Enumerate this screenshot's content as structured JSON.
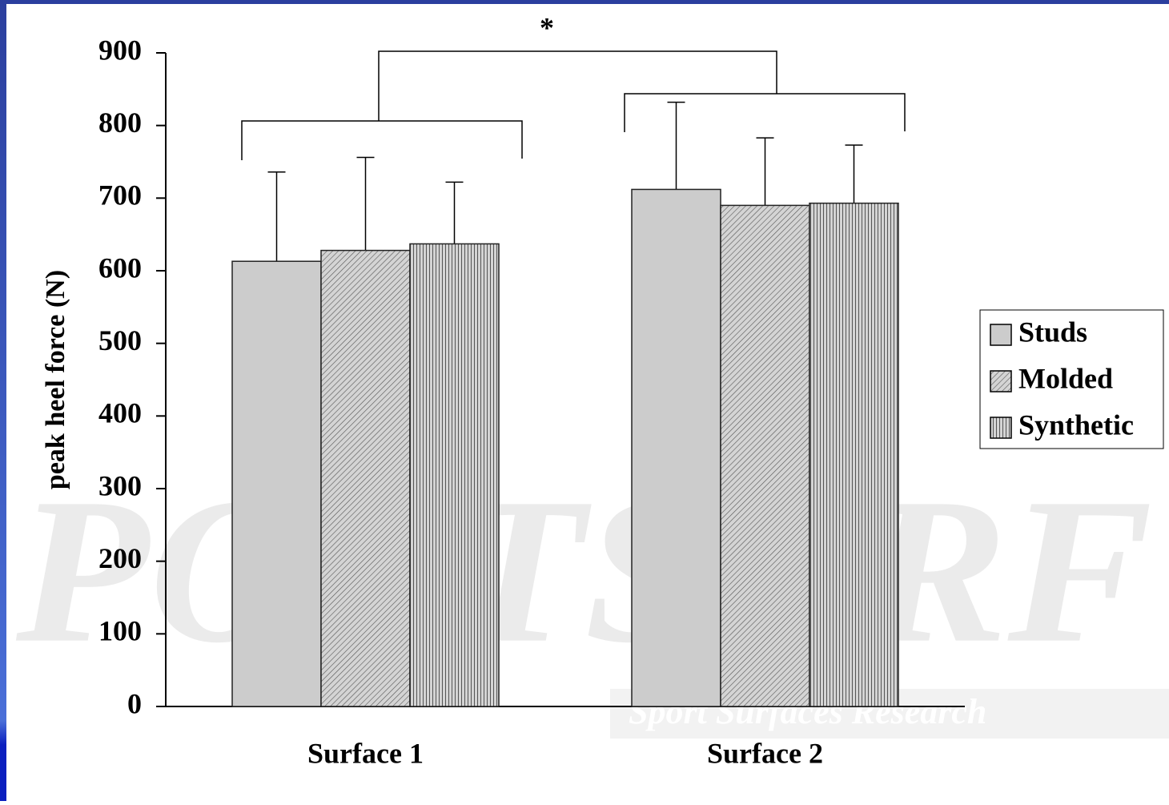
{
  "chart_data": {
    "type": "bar",
    "y_label": "peak heel force (N)",
    "annotation": "*",
    "categories": [
      "Surface 1",
      "Surface 2"
    ],
    "series": [
      {
        "name": "Studs",
        "color": "#cccccc",
        "pattern": "solid",
        "values": [
          613,
          712
        ],
        "errors": [
          123,
          120
        ]
      },
      {
        "name": "Molded",
        "color": "#cccccc",
        "pattern": "diagonal",
        "values": [
          628,
          690
        ],
        "errors": [
          128,
          93
        ]
      },
      {
        "name": "Synthetic",
        "color": "#cccccc",
        "pattern": "vertical",
        "values": [
          637,
          693
        ],
        "errors": [
          85,
          80
        ]
      }
    ],
    "ylim": [
      0,
      900
    ],
    "yticks": [
      0,
      100,
      200,
      300,
      400,
      500,
      600,
      700,
      800,
      900
    ],
    "legend": "right",
    "watermark": {
      "logo": "PORTSURF",
      "tagline": "Sport Surfaces Research"
    }
  }
}
